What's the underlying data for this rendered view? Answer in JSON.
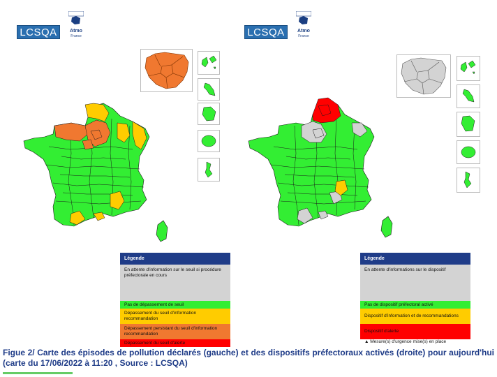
{
  "colors": {
    "grey": "#d3d3d3",
    "green": "#33ee33",
    "yellow": "#ffcc00",
    "orange": "#f07830",
    "red": "#ff0000",
    "legend_header": "#1f3c88",
    "caption": "#1f3c88"
  },
  "logos": {
    "lcsqa": "LCSQA",
    "atmo_name": "Atmo",
    "atmo_sub": "France"
  },
  "left_legend": {
    "title": "Légende",
    "items": [
      {
        "label": "En attente d'information sur le seuil si procédure préfectorale en cours",
        "color": "#d3d3d3"
      },
      {
        "label": "Pas de dépassement de seuil",
        "color": "#33ee33"
      },
      {
        "label": "Dépassement du seuil d'information recommandation",
        "color": "#ffcc00"
      },
      {
        "label": "Dépassement persistant du seuil d'information recommandation",
        "color": "#f07830"
      },
      {
        "label": "Dépassement du seuil d'alerte",
        "color": "#ff0000"
      }
    ]
  },
  "right_legend": {
    "title": "Légende",
    "items": [
      {
        "label": "En attente d'informations sur le dispositif",
        "color": "#d3d3d3"
      },
      {
        "label": "Pas de dispositif préfectoral activé",
        "color": "#33ee33"
      },
      {
        "label": "Dispositif d'information et de recommandations",
        "color": "#ffcc00"
      },
      {
        "label": "Dispositif d'alerte",
        "color": "#ff0000"
      }
    ],
    "note": "Mesure(s) d'urgence mise(s) en place",
    "note_icon": "warning-triangle-icon"
  },
  "caption": "Figue 2/ Carte des épisodes de pollution déclarés (gauche) et des dispositifs préfectoraux activés (droite) pour aujourd'hui (carte du 17/06/2022 à 11:20 , Source : LCSQA)"
}
